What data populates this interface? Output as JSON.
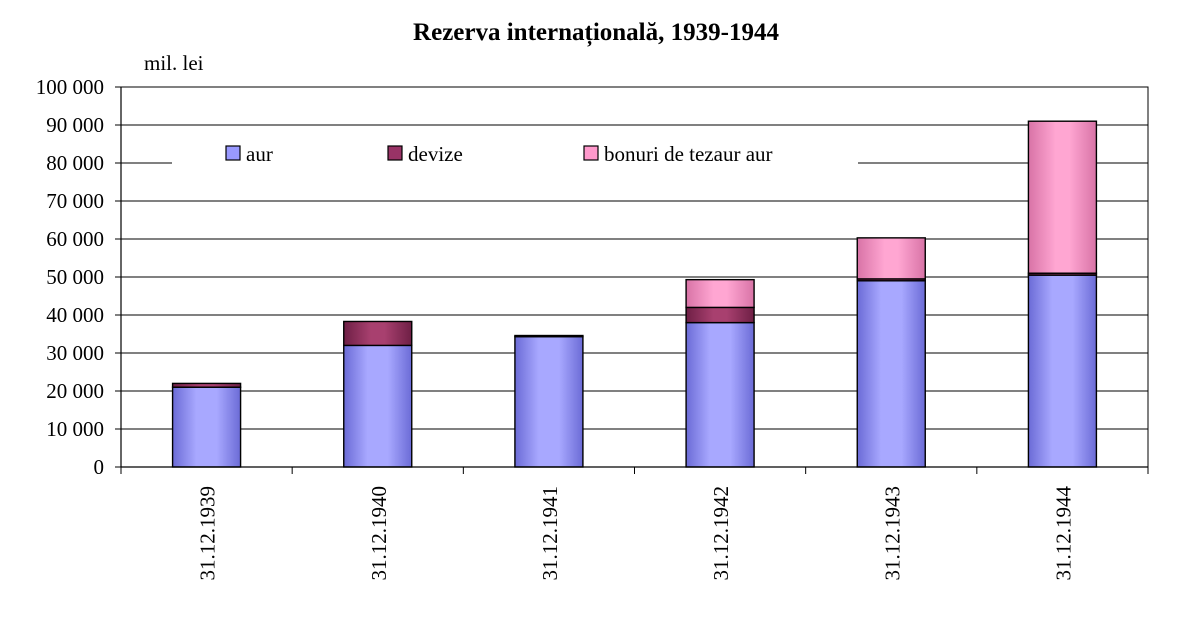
{
  "chart_data": {
    "type": "bar",
    "stacked": true,
    "title": "Rezerva internațională, 1939-1944",
    "unit_label": "mil. lei",
    "xlabel": "",
    "ylabel": "",
    "ylim": [
      0,
      100000
    ],
    "yticks": [
      "0",
      "10 000",
      "20 000",
      "30 000",
      "40 000",
      "50 000",
      "60 000",
      "70 000",
      "80 000",
      "90 000",
      "100 000"
    ],
    "grid": true,
    "legend_position": "top-inside",
    "categories": [
      "31.12.1939",
      "31.12.1940",
      "31.12.1941",
      "31.12.1942",
      "31.12.1943",
      "31.12.1944"
    ],
    "series": [
      {
        "name": "aur",
        "color": "#9999ff",
        "values": [
          21000,
          32000,
          34300,
          38000,
          49000,
          50500
        ]
      },
      {
        "name": "devize",
        "color": "#993366",
        "values": [
          1000,
          6300,
          300,
          4000,
          500,
          500
        ]
      },
      {
        "name": "bonuri de tezaur aur",
        "color": "#ff99cc",
        "values": [
          0,
          0,
          0,
          7300,
          10800,
          40000
        ]
      }
    ]
  }
}
